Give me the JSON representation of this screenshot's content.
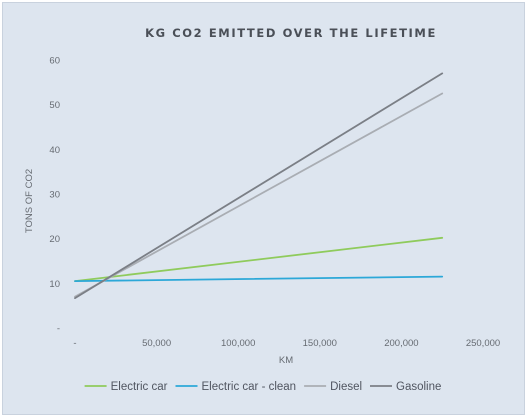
{
  "chart_data": {
    "type": "line",
    "title": "KG CO2 EMITTED OVER THE LIFETIME",
    "xlabel": "KM",
    "ylabel": "TONS OF CO2",
    "xlim": [
      0,
      250000
    ],
    "ylim": [
      0,
      60
    ],
    "x_ticks": [
      "-",
      "50,000",
      "100,000",
      "150,000",
      "200,000",
      "250,000"
    ],
    "y_ticks": [
      "-",
      "10",
      "20",
      "30",
      "40",
      "50",
      "60"
    ],
    "x_tick_values": [
      0,
      50000,
      100000,
      150000,
      200000,
      250000
    ],
    "y_tick_values": [
      0,
      10,
      20,
      30,
      40,
      50,
      60
    ],
    "grid": false,
    "legend_position": "bottom",
    "series": [
      {
        "name": "Electric car",
        "color": "#8fcb5c",
        "x": [
          0,
          225000
        ],
        "y": [
          10.5,
          20.2
        ]
      },
      {
        "name": "Electric car - clean",
        "color": "#2ca8d8",
        "x": [
          0,
          225000
        ],
        "y": [
          10.5,
          11.5
        ]
      },
      {
        "name": "Diesel",
        "color": "#a9adb3",
        "x": [
          0,
          225000
        ],
        "y": [
          7.0,
          52.5
        ]
      },
      {
        "name": "Gasoline",
        "color": "#7b7f86",
        "x": [
          0,
          225000
        ],
        "y": [
          6.7,
          57.0
        ]
      }
    ]
  }
}
